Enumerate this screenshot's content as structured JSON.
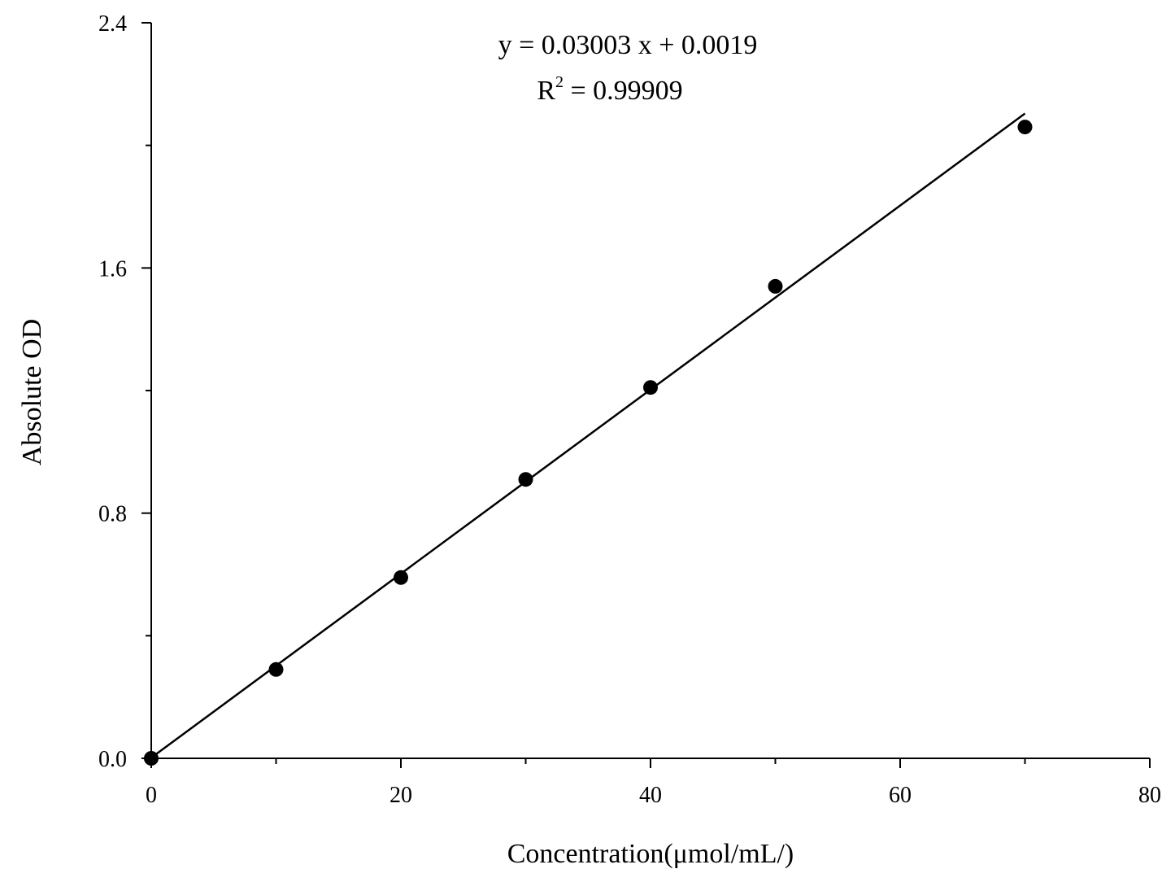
{
  "chart_data": {
    "type": "scatter",
    "xlabel": "Concentration(μmol/mL/)",
    "ylabel": "Absolute OD",
    "xlim": [
      0,
      80
    ],
    "ylim": [
      0,
      2.4
    ],
    "x_ticks": [
      "0",
      "20",
      "40",
      "60",
      "80"
    ],
    "y_ticks": [
      "0.0",
      "0.8",
      "1.6",
      "2.4"
    ],
    "x_major_values": [
      0,
      20,
      40,
      60,
      80
    ],
    "x_minor_values": [
      10,
      30,
      50,
      70
    ],
    "y_major_values": [
      0,
      0.8,
      1.6,
      2.4
    ],
    "y_minor_values": [
      0.4,
      1.2,
      2.0
    ],
    "grid": false,
    "series": [
      {
        "marker": "filled-circle",
        "x": [
          0,
          10,
          20,
          30,
          40,
          50,
          70
        ],
        "y": [
          0.0,
          0.29,
          0.59,
          0.91,
          1.21,
          1.54,
          2.06
        ]
      }
    ],
    "fit_line": {
      "slope": 0.03003,
      "intercept": 0.0019,
      "x_range": [
        0,
        70
      ]
    },
    "annotations": {
      "equation": "y = 0.03003 x + 0.0019",
      "r2_prefix": "R",
      "r2_sup": "2",
      "r2_value": " = 0.99909"
    },
    "colors": {
      "marker": "#000000",
      "line": "#000000",
      "axis": "#000000"
    }
  }
}
